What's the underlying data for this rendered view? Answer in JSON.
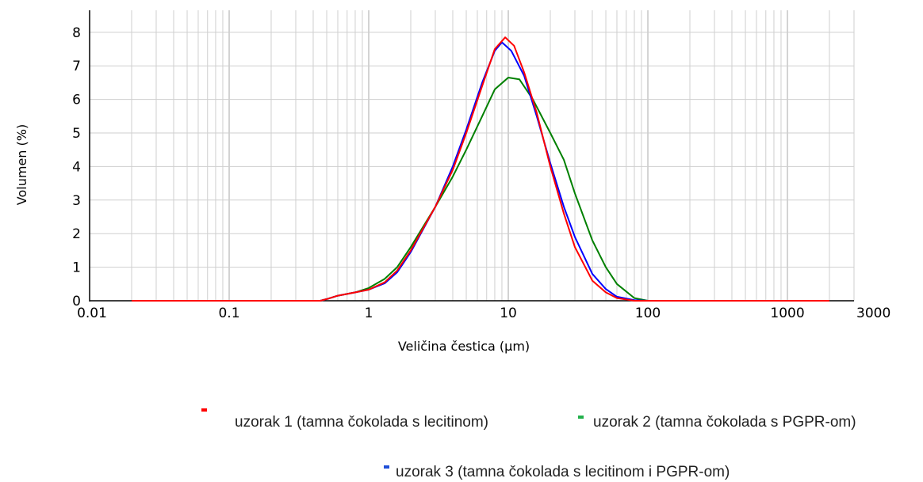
{
  "chart_data": {
    "type": "line",
    "xlabel": "Veličina čestica (μm)",
    "ylabel": "Volumen (%)",
    "xscale": "log",
    "xlim": [
      0.01,
      3000
    ],
    "ylim": [
      0,
      8.5
    ],
    "x_ticks": [
      "0.01",
      "0.1",
      "1",
      "10",
      "100",
      "1000",
      "3000"
    ],
    "y_ticks": [
      "0",
      "1",
      "2",
      "3",
      "4",
      "5",
      "6",
      "7",
      "8"
    ],
    "grid": true,
    "legend_position": "bottom",
    "series": [
      {
        "name": "uzorak 1 (tamna čokolada s lecitinom)",
        "color": "#ff0000",
        "points": [
          [
            0.02,
            0
          ],
          [
            0.45,
            0
          ],
          [
            0.5,
            0.05
          ],
          [
            0.6,
            0.15
          ],
          [
            0.8,
            0.25
          ],
          [
            1.0,
            0.33
          ],
          [
            1.3,
            0.55
          ],
          [
            1.6,
            0.9
          ],
          [
            2.0,
            1.5
          ],
          [
            3.0,
            2.8
          ],
          [
            4.0,
            3.9
          ],
          [
            5.0,
            5.0
          ],
          [
            6.5,
            6.4
          ],
          [
            8.0,
            7.5
          ],
          [
            9.5,
            7.85
          ],
          [
            11,
            7.6
          ],
          [
            13,
            6.8
          ],
          [
            16,
            5.6
          ],
          [
            20,
            4.0
          ],
          [
            25,
            2.6
          ],
          [
            30,
            1.6
          ],
          [
            40,
            0.6
          ],
          [
            50,
            0.25
          ],
          [
            60,
            0.08
          ],
          [
            80,
            0
          ],
          [
            2000,
            0
          ]
        ]
      },
      {
        "name": "uzorak 2 (tamna čokolada s PGPR-om)",
        "color": "#008000",
        "points": [
          [
            0.02,
            0
          ],
          [
            0.45,
            0
          ],
          [
            0.5,
            0.05
          ],
          [
            0.6,
            0.15
          ],
          [
            0.8,
            0.25
          ],
          [
            1.0,
            0.38
          ],
          [
            1.3,
            0.65
          ],
          [
            1.6,
            1.0
          ],
          [
            2.0,
            1.6
          ],
          [
            3.0,
            2.8
          ],
          [
            4.0,
            3.7
          ],
          [
            5.0,
            4.5
          ],
          [
            6.5,
            5.5
          ],
          [
            8.0,
            6.3
          ],
          [
            10,
            6.65
          ],
          [
            12,
            6.6
          ],
          [
            15,
            6.0
          ],
          [
            20,
            5.0
          ],
          [
            25,
            4.2
          ],
          [
            30,
            3.2
          ],
          [
            40,
            1.8
          ],
          [
            50,
            1.0
          ],
          [
            60,
            0.5
          ],
          [
            80,
            0.08
          ],
          [
            100,
            0
          ],
          [
            2000,
            0
          ]
        ]
      },
      {
        "name": "uzorak  3 (tamna čokolada s lecitinom i PGPR-om)",
        "color": "#0000ff",
        "points": [
          [
            0.02,
            0
          ],
          [
            0.45,
            0
          ],
          [
            0.5,
            0.05
          ],
          [
            0.6,
            0.15
          ],
          [
            0.8,
            0.25
          ],
          [
            1.0,
            0.33
          ],
          [
            1.3,
            0.52
          ],
          [
            1.6,
            0.85
          ],
          [
            2.0,
            1.45
          ],
          [
            3.0,
            2.8
          ],
          [
            4.0,
            4.0
          ],
          [
            5.0,
            5.1
          ],
          [
            6.5,
            6.5
          ],
          [
            8.0,
            7.45
          ],
          [
            9.0,
            7.7
          ],
          [
            10.5,
            7.45
          ],
          [
            13,
            6.7
          ],
          [
            16,
            5.5
          ],
          [
            20,
            4.1
          ],
          [
            25,
            2.8
          ],
          [
            30,
            1.9
          ],
          [
            40,
            0.8
          ],
          [
            50,
            0.35
          ],
          [
            60,
            0.12
          ],
          [
            80,
            0.02
          ],
          [
            100,
            0
          ],
          [
            2000,
            0
          ]
        ]
      }
    ]
  }
}
